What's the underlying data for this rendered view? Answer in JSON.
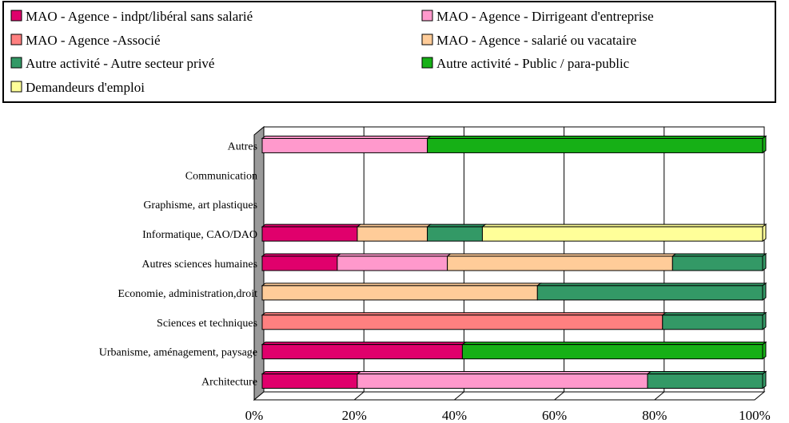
{
  "chart_data": {
    "type": "bar",
    "orientation": "horizontal",
    "stacked": "percent",
    "title": "",
    "xlabel": "",
    "ylabel": "",
    "xlim": [
      0,
      100
    ],
    "x_ticks": [
      "0%",
      "20%",
      "40%",
      "60%",
      "80%",
      "100%"
    ],
    "grid": true,
    "legend_position": "top",
    "categories": [
      "Autres",
      "Communication",
      "Graphisme, art plastiques",
      "Informatique, CAO/DAO",
      "Autres sciences humaines",
      "Economie, administration,droit",
      "Sciences et techniques",
      "Urbanisme, aménagement, paysage",
      "Architecture"
    ],
    "series": [
      {
        "name": "MAO - Agence - indpt/libéral sans salarié",
        "color": "#e0006c",
        "values": [
          0,
          0,
          0,
          19,
          15,
          0,
          0,
          40,
          19
        ]
      },
      {
        "name": "MAO - Agence - Dirrigeant d'entreprise",
        "color": "#ff99cc",
        "values": [
          33,
          0,
          0,
          0,
          22,
          0,
          0,
          0,
          58
        ]
      },
      {
        "name": "MAO - Agence -Associé",
        "color": "#ff8080",
        "values": [
          0,
          0,
          0,
          0,
          0,
          0,
          80,
          0,
          0
        ]
      },
      {
        "name": "MAO - Agence - salarié ou vacataire",
        "color": "#ffcc99",
        "values": [
          0,
          0,
          0,
          14,
          45,
          55,
          0,
          0,
          0
        ]
      },
      {
        "name": "Autre activité - Autre secteur privé",
        "color": "#339966",
        "values": [
          0,
          0,
          0,
          11,
          18,
          45,
          20,
          0,
          23
        ]
      },
      {
        "name": "Autre activité - Public / para-public",
        "color": "#16b016",
        "values": [
          67,
          0,
          0,
          0,
          0,
          0,
          0,
          60,
          0
        ]
      },
      {
        "name": "Demandeurs d'emploi",
        "color": "#ffff99",
        "values": [
          0,
          0,
          0,
          56,
          0,
          0,
          0,
          0,
          0
        ]
      }
    ]
  }
}
